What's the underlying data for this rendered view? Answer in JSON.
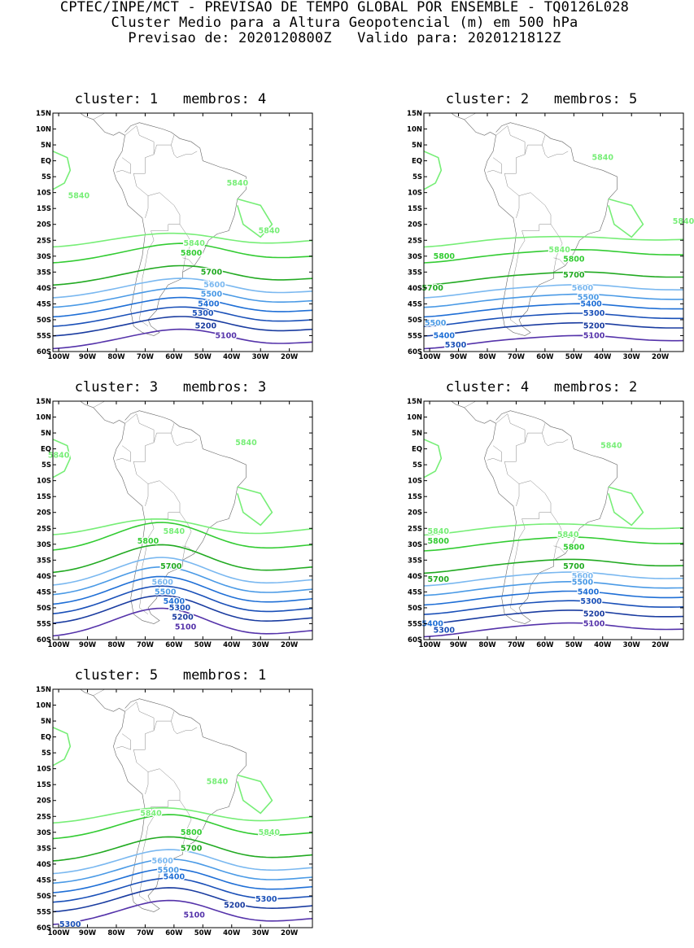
{
  "header": {
    "line1": "CPTEC/INPE/MCT - PREVISAO DE TEMPO GLOBAL POR ENSEMBLE - TQ0126L028",
    "line2": "Cluster Medio para a Altura Geopotencial (m) em 500 hPa",
    "line3": "Previsao de: 2020120800Z   Valido para: 2020121812Z"
  },
  "axes": {
    "lat_labels": [
      "15N",
      "10N",
      "5N",
      "EQ",
      "5S",
      "10S",
      "15S",
      "20S",
      "25S",
      "30S",
      "35S",
      "40S",
      "45S",
      "50S",
      "55S",
      "60S"
    ],
    "lon_labels": [
      "100W",
      "90W",
      "80W",
      "70W",
      "60W",
      "50W",
      "40W",
      "30W",
      "20W"
    ]
  },
  "colors": {
    "5840": "#77ee77",
    "5800": "#33cc33",
    "5700": "#22aa22",
    "5600": "#7ab8f0",
    "5500": "#4a9ae6",
    "5400": "#1f6fd6",
    "5300": "#1a50b8",
    "5200": "#1a3ca0",
    "5100": "#5533aa",
    "5000": "#6655cc"
  },
  "panels": [
    {
      "title": "cluster: 1   membros: 4",
      "labels": [
        {
          "text": "5840",
          "level": "5840",
          "lon": -93,
          "lat": -11
        },
        {
          "text": "5840",
          "level": "5840",
          "lon": -38,
          "lat": -7
        },
        {
          "text": "5840",
          "level": "5840",
          "lon": -27,
          "lat": -22
        },
        {
          "text": "5840",
          "level": "5840",
          "lon": -53,
          "lat": -26
        },
        {
          "text": "5800",
          "level": "5800",
          "lon": -54,
          "lat": -29
        },
        {
          "text": "5700",
          "level": "5700",
          "lon": -47,
          "lat": -35
        },
        {
          "text": "5600",
          "level": "5600",
          "lon": -46,
          "lat": -39
        },
        {
          "text": "5500",
          "level": "5500",
          "lon": -47,
          "lat": -42
        },
        {
          "text": "5400",
          "level": "5400",
          "lon": -48,
          "lat": -45
        },
        {
          "text": "5300",
          "level": "5300",
          "lon": -50,
          "lat": -48
        },
        {
          "text": "5200",
          "level": "5200",
          "lon": -49,
          "lat": -52
        },
        {
          "text": "5100",
          "level": "5100",
          "lon": -42,
          "lat": -55
        }
      ]
    },
    {
      "title": "cluster: 2   membros: 5",
      "labels": [
        {
          "text": "5840",
          "level": "5840",
          "lon": -40,
          "lat": 1
        },
        {
          "text": "5840",
          "level": "5840",
          "lon": -12,
          "lat": -19
        },
        {
          "text": "5840",
          "level": "5840",
          "lon": -55,
          "lat": -28
        },
        {
          "text": "5800",
          "level": "5800",
          "lon": -95,
          "lat": -30
        },
        {
          "text": "5800",
          "level": "5800",
          "lon": -50,
          "lat": -31
        },
        {
          "text": "5700",
          "level": "5700",
          "lon": -99,
          "lat": -40
        },
        {
          "text": "5700",
          "level": "5700",
          "lon": -50,
          "lat": -36
        },
        {
          "text": "5600",
          "level": "5600",
          "lon": -47,
          "lat": -40
        },
        {
          "text": "5500",
          "level": "5500",
          "lon": -45,
          "lat": -43
        },
        {
          "text": "5400",
          "level": "5400",
          "lon": -44,
          "lat": -45
        },
        {
          "text": "5300",
          "level": "5300",
          "lon": -43,
          "lat": -48
        },
        {
          "text": "5200",
          "level": "5200",
          "lon": -43,
          "lat": -52
        },
        {
          "text": "5100",
          "level": "5100",
          "lon": -43,
          "lat": -55
        },
        {
          "text": "5500",
          "level": "5500",
          "lon": -98,
          "lat": -51
        },
        {
          "text": "5400",
          "level": "5400",
          "lon": -95,
          "lat": -55
        },
        {
          "text": "5300",
          "level": "5300",
          "lon": -91,
          "lat": -58
        }
      ]
    },
    {
      "title": "cluster: 3   membros: 3",
      "labels": [
        {
          "text": "5840",
          "level": "5840",
          "lon": -35,
          "lat": 2
        },
        {
          "text": "5840",
          "level": "5840",
          "lon": -100,
          "lat": -2
        },
        {
          "text": "5840",
          "level": "5840",
          "lon": -60,
          "lat": -26
        },
        {
          "text": "5800",
          "level": "5800",
          "lon": -69,
          "lat": -29
        },
        {
          "text": "5700",
          "level": "5700",
          "lon": -61,
          "lat": -37
        },
        {
          "text": "5600",
          "level": "5600",
          "lon": -64,
          "lat": -42
        },
        {
          "text": "5500",
          "level": "5500",
          "lon": -63,
          "lat": -45
        },
        {
          "text": "5400",
          "level": "5400",
          "lon": -60,
          "lat": -48
        },
        {
          "text": "5300",
          "level": "5300",
          "lon": -58,
          "lat": -50
        },
        {
          "text": "5200",
          "level": "5200",
          "lon": -57,
          "lat": -53
        },
        {
          "text": "5100",
          "level": "5100",
          "lon": -56,
          "lat": -56
        }
      ]
    },
    {
      "title": "cluster: 4   membros: 2",
      "labels": [
        {
          "text": "5840",
          "level": "5840",
          "lon": -37,
          "lat": 1
        },
        {
          "text": "5840",
          "level": "5840",
          "lon": -97,
          "lat": -26
        },
        {
          "text": "5840",
          "level": "5840",
          "lon": -52,
          "lat": -27
        },
        {
          "text": "5800",
          "level": "5800",
          "lon": -97,
          "lat": -29
        },
        {
          "text": "5800",
          "level": "5800",
          "lon": -50,
          "lat": -31
        },
        {
          "text": "5700",
          "level": "5700",
          "lon": -97,
          "lat": -41
        },
        {
          "text": "5700",
          "level": "5700",
          "lon": -50,
          "lat": -37
        },
        {
          "text": "5600",
          "level": "5600",
          "lon": -47,
          "lat": -40
        },
        {
          "text": "5500",
          "level": "5500",
          "lon": -47,
          "lat": -42
        },
        {
          "text": "5400",
          "level": "5400",
          "lon": -45,
          "lat": -45
        },
        {
          "text": "5300",
          "level": "5300",
          "lon": -44,
          "lat": -48
        },
        {
          "text": "5200",
          "level": "5200",
          "lon": -43,
          "lat": -52
        },
        {
          "text": "5100",
          "level": "5100",
          "lon": -43,
          "lat": -55
        },
        {
          "text": "5400",
          "level": "5400",
          "lon": -99,
          "lat": -55
        },
        {
          "text": "5300",
          "level": "5300",
          "lon": -95,
          "lat": -57
        }
      ]
    },
    {
      "title": "cluster: 5   membros: 1",
      "labels": [
        {
          "text": "5840",
          "level": "5840",
          "lon": -45,
          "lat": -14
        },
        {
          "text": "5840",
          "level": "5840",
          "lon": -68,
          "lat": -24
        },
        {
          "text": "5840",
          "level": "5840",
          "lon": -27,
          "lat": -30
        },
        {
          "text": "5800",
          "level": "5800",
          "lon": -54,
          "lat": -30
        },
        {
          "text": "5700",
          "level": "5700",
          "lon": -54,
          "lat": -35
        },
        {
          "text": "5600",
          "level": "5600",
          "lon": -64,
          "lat": -39
        },
        {
          "text": "5500",
          "level": "5500",
          "lon": -62,
          "lat": -42
        },
        {
          "text": "5400",
          "level": "5400",
          "lon": -60,
          "lat": -44
        },
        {
          "text": "5300",
          "level": "5300",
          "lon": -28,
          "lat": -51
        },
        {
          "text": "5200",
          "level": "5200",
          "lon": -39,
          "lat": -53
        },
        {
          "text": "5100",
          "level": "5100",
          "lon": -53,
          "lat": -56
        },
        {
          "text": "5300",
          "level": "5300",
          "lon": -96,
          "lat": -59
        }
      ]
    }
  ]
}
